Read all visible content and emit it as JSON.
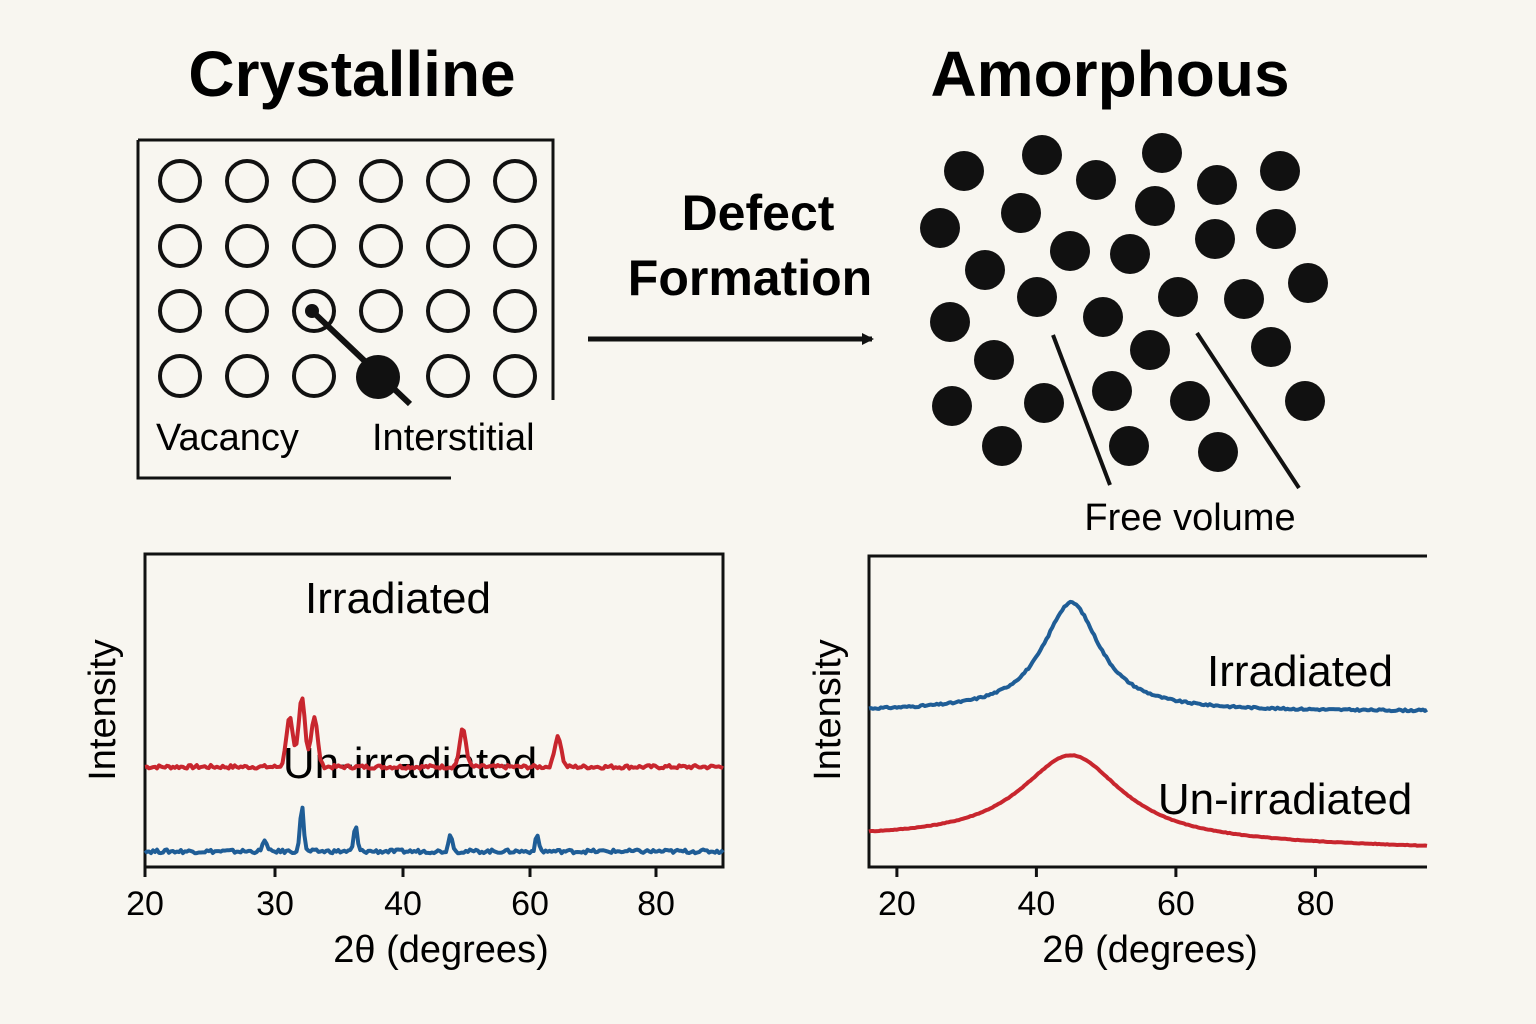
{
  "headings": {
    "left": "Crystalline",
    "right": "Amorphous"
  },
  "arrow": {
    "line1": "Defect",
    "line2": "Formation"
  },
  "lattice": {
    "rows": 4,
    "cols": 6,
    "vacancy_label": "Vacancy",
    "interstitial_label": "Interstitial"
  },
  "amorphous": {
    "free_volume_label": "Free volume"
  },
  "chart_data": [
    {
      "type": "line",
      "panel": "crystalline",
      "xlabel": "2θ (degrees)",
      "ylabel": "Intensity",
      "xlim": [
        20,
        90
      ],
      "xticks": [
        20,
        30,
        40,
        60,
        80
      ],
      "series": [
        {
          "name": "Irradiated",
          "color": "#c8262e",
          "baseline": 0.32,
          "peaks": [
            {
              "x": 37.5,
              "height": 0.16
            },
            {
              "x": 39,
              "height": 0.22
            },
            {
              "x": 40.5,
              "height": 0.16
            },
            {
              "x": 58.5,
              "height": 0.12
            },
            {
              "x": 70,
              "height": 0.1
            }
          ]
        },
        {
          "name": "Un-irradiated",
          "color": "#1f5d96",
          "baseline": 0.05,
          "peaks": [
            {
              "x": 34.5,
              "height": 0.04
            },
            {
              "x": 39,
              "height": 0.15
            },
            {
              "x": 45.5,
              "height": 0.08
            },
            {
              "x": 57,
              "height": 0.06
            },
            {
              "x": 67.5,
              "height": 0.05
            }
          ]
        }
      ]
    },
    {
      "type": "line",
      "panel": "amorphous",
      "xlabel": "2θ (degrees)",
      "ylabel": "Intensity",
      "xlim": [
        16,
        96
      ],
      "xticks": [
        20,
        40,
        60,
        80
      ],
      "series": [
        {
          "name": "Irradiated",
          "color": "#1f5d96",
          "baseline": 0.5,
          "peak_center": 45,
          "peak_height": 0.35,
          "peak_width": 5
        },
        {
          "name": "Un-irradiated",
          "color": "#c8262e",
          "baseline": 0.06,
          "peak_center": 45,
          "peak_height": 0.28,
          "peak_width": 9
        }
      ]
    }
  ]
}
